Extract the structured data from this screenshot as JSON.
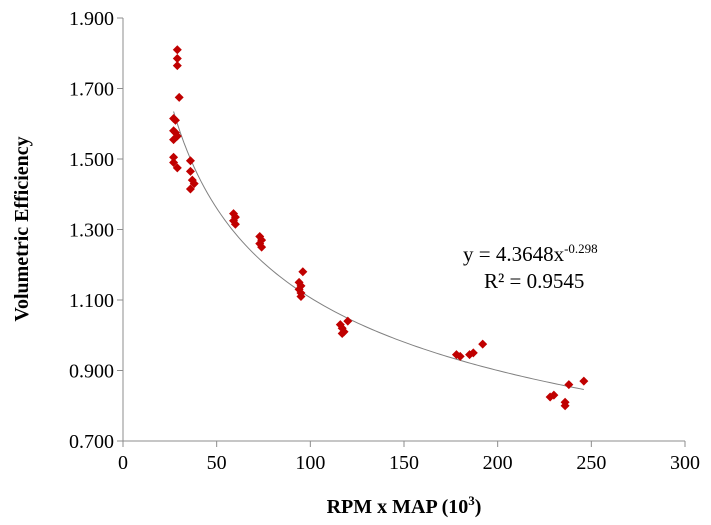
{
  "chart_data": {
    "type": "scatter",
    "xlabel": "RPM x MAP (10",
    "xlabel_sup": "3",
    "xlabel_end": ")",
    "ylabel": "Volumetric Efficiency",
    "xlim": [
      0,
      300
    ],
    "ylim": [
      0.7,
      1.9
    ],
    "x_ticks": [
      0,
      50,
      100,
      150,
      200,
      250,
      300
    ],
    "x_tick_labels": [
      "0",
      "50",
      "100",
      "150",
      "200",
      "250",
      "300"
    ],
    "y_ticks": [
      0.7,
      0.9,
      1.1,
      1.3,
      1.5,
      1.7,
      1.9
    ],
    "y_tick_labels": [
      "0.700",
      "0.900",
      "1.100",
      "1.300",
      "1.500",
      "1.700",
      "1.900"
    ],
    "grid": false,
    "marker_color": "#c00000",
    "trendline_color": "#808080",
    "trendline": {
      "type": "power",
      "a": 4.3648,
      "b": -0.298,
      "x_range": [
        27,
        246
      ]
    },
    "annotation": {
      "equation_prefix": "y = 4.3648x",
      "equation_exponent": "-0.298",
      "r_squared": "R² = 0.9545"
    },
    "series": [
      {
        "points": [
          [
            29,
            1.81
          ],
          [
            29,
            1.785
          ],
          [
            29,
            1.765
          ],
          [
            30,
            1.675
          ],
          [
            27,
            1.615
          ],
          [
            28,
            1.61
          ],
          [
            27,
            1.58
          ],
          [
            28,
            1.575
          ],
          [
            29,
            1.565
          ],
          [
            27,
            1.555
          ],
          [
            27,
            1.505
          ],
          [
            27,
            1.49
          ],
          [
            29,
            1.475
          ],
          [
            36,
            1.495
          ],
          [
            36,
            1.465
          ],
          [
            37,
            1.44
          ],
          [
            38,
            1.43
          ],
          [
            36,
            1.415
          ],
          [
            59,
            1.345
          ],
          [
            60,
            1.335
          ],
          [
            59,
            1.325
          ],
          [
            60,
            1.315
          ],
          [
            73,
            1.28
          ],
          [
            74,
            1.27
          ],
          [
            73,
            1.26
          ],
          [
            74,
            1.25
          ],
          [
            96,
            1.18
          ],
          [
            94,
            1.15
          ],
          [
            95,
            1.14
          ],
          [
            94,
            1.13
          ],
          [
            95,
            1.12
          ],
          [
            95,
            1.11
          ],
          [
            116,
            1.03
          ],
          [
            117,
            1.02
          ],
          [
            118,
            1.01
          ],
          [
            117,
            1.005
          ],
          [
            120,
            1.04
          ],
          [
            178,
            0.945
          ],
          [
            180,
            0.94
          ],
          [
            185,
            0.945
          ],
          [
            187,
            0.95
          ],
          [
            192,
            0.975
          ],
          [
            228,
            0.825
          ],
          [
            230,
            0.83
          ],
          [
            236,
            0.81
          ],
          [
            236,
            0.8
          ],
          [
            238,
            0.86
          ],
          [
            246,
            0.87
          ]
        ]
      }
    ]
  }
}
